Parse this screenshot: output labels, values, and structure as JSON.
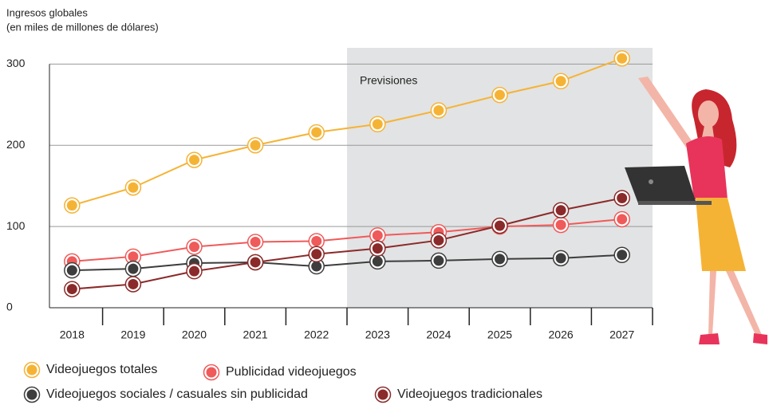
{
  "chart_data": {
    "type": "line",
    "ylabel": [
      "Ingresos globales",
      "(en miles de millones de dólares)"
    ],
    "categories": [
      "2018",
      "2019",
      "2020",
      "2021",
      "2022",
      "2023",
      "2024",
      "2025",
      "2026",
      "2027"
    ],
    "forecast": {
      "label": "Previsiones",
      "from": "2023"
    },
    "series": [
      {
        "name": "Videojuegos totales",
        "color": "#f5b335",
        "values": [
          126,
          148,
          182,
          200,
          216,
          226,
          243,
          262,
          279,
          307
        ]
      },
      {
        "name": "Publicidad videojuegos",
        "color": "#ef5a5a",
        "values": [
          57,
          63,
          75,
          81,
          82,
          89,
          93,
          100,
          102,
          109
        ]
      },
      {
        "name": "Videojuegos sociales / casuales sin publicidad",
        "color": "#3d3d3d",
        "values": [
          46,
          48,
          55,
          56,
          51,
          57,
          58,
          60,
          61,
          65
        ]
      },
      {
        "name": "Videojuegos tradicionales",
        "color": "#8b2a2a",
        "values": [
          23,
          29,
          45,
          56,
          66,
          73,
          83,
          101,
          120,
          135
        ]
      }
    ],
    "ylim": [
      0,
      320
    ],
    "yticks": [
      0,
      100,
      200,
      300
    ],
    "grid": true
  }
}
